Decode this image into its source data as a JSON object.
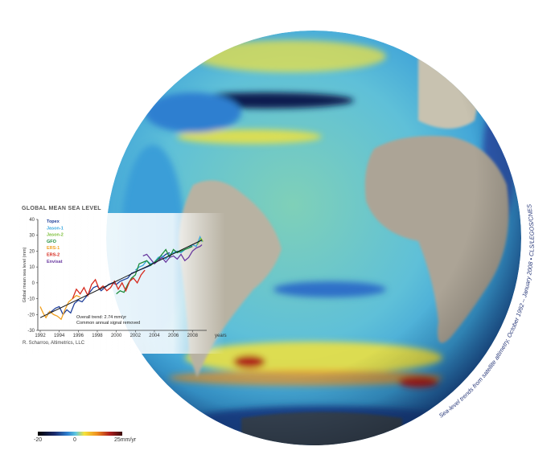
{
  "caption": "Sea-level trends from satellite altimetry, October 1992 – January 2008 • CLS/LEGOS/CNES",
  "colorbar": {
    "min_label": "-20",
    "mid_label": "0",
    "max_label": "25mm/yr",
    "colors": [
      "#000000",
      "#1a2a6c",
      "#2d7fd0",
      "#5fc8e0",
      "#9fd8a0",
      "#f5e33a",
      "#f09020",
      "#b01e1e",
      "#3a0a0a"
    ]
  },
  "credit": "R. Scharroo, Altimetrics, LLC",
  "chart_data": {
    "type": "line",
    "title": "GLOBAL MEAN SEA LEVEL",
    "ylabel": "Global mean sea level (mm)",
    "xlabel": "years",
    "xlim": [
      1992,
      2009.5
    ],
    "ylim": [
      -30,
      40
    ],
    "xticks": [
      "1992",
      "1994",
      "1996",
      "1998",
      "2000",
      "2002",
      "2004",
      "2006",
      "2008"
    ],
    "yticks": [
      "-30",
      "-20",
      "-10",
      "0",
      "10",
      "20",
      "30",
      "40"
    ],
    "legend_placement": "top-left",
    "annotations": [
      "Overall trend: 2.74 mm/yr",
      "Common annual signal removed"
    ],
    "trend": {
      "x": [
        1992,
        2009
      ],
      "y": [
        -22,
        27
      ]
    },
    "series": [
      {
        "name": "Topex",
        "color": "#1f3f9a",
        "x": [
          1992.8,
          1993.2,
          1993.6,
          1994,
          1994.4,
          1994.8,
          1995.2,
          1995.6,
          1996,
          1996.4,
          1996.8,
          1997.2,
          1997.6,
          1998,
          1998.4,
          1998.8,
          1999.2,
          1999.6,
          2000,
          2000.4,
          2000.8,
          2001.2,
          2001.6,
          2002,
          2002.4,
          2002.8,
          2003.2,
          2003.6,
          2004,
          2004.4,
          2004.8,
          2005.2,
          2005.6
        ],
        "y": [
          -19,
          -18,
          -16,
          -15,
          -20,
          -17,
          -19,
          -13,
          -11,
          -12,
          -9,
          -6,
          -3,
          -2,
          -5,
          -3,
          -1,
          0,
          -1,
          1,
          2,
          3,
          6,
          7,
          8,
          9,
          10,
          11,
          13,
          15,
          16,
          18,
          19
        ]
      },
      {
        "name": "Jason-1",
        "color": "#3aa8e0",
        "x": [
          2002,
          2002.4,
          2002.8,
          2003.2,
          2003.6,
          2004,
          2004.4,
          2004.8,
          2005.2,
          2005.6,
          2006,
          2006.4,
          2006.8,
          2007.2,
          2007.6,
          2008,
          2008.4,
          2008.8,
          2009
        ],
        "y": [
          8,
          10,
          11,
          14,
          12,
          13,
          16,
          17,
          15,
          18,
          19,
          20,
          19,
          21,
          22,
          24,
          23,
          29,
          26
        ]
      },
      {
        "name": "Jason-2",
        "color": "#7cbf3a",
        "x": [
          2008.5,
          2008.7,
          2008.9,
          2009.1
        ],
        "y": [
          24,
          26,
          28,
          26
        ]
      },
      {
        "name": "GFO",
        "color": "#1e8c3a",
        "x": [
          2000,
          2000.4,
          2000.8,
          2001.2,
          2001.6,
          2002,
          2002.4,
          2002.8,
          2003.2,
          2003.6,
          2004,
          2004.4,
          2004.8,
          2005.2,
          2005.6,
          2006,
          2006.4,
          2006.8,
          2007.2,
          2007.6,
          2008
        ],
        "y": [
          -7,
          -5,
          -6,
          -1,
          3,
          5,
          12,
          13,
          14,
          11,
          13,
          15,
          18,
          21,
          16,
          21,
          19,
          20,
          21,
          22,
          23
        ]
      },
      {
        "name": "ERS-1",
        "color": "#f0a020",
        "x": [
          1992,
          1992.3,
          1992.6,
          1993,
          1993.4,
          1993.8,
          1994.2,
          1994.6,
          1995,
          1995.4,
          1995.8,
          1996.2
        ],
        "y": [
          -15,
          -19,
          -22,
          -18,
          -20,
          -21,
          -23,
          -17,
          -12,
          -10,
          -8,
          -9
        ]
      },
      {
        "name": "ERS-2",
        "color": "#d62a1e",
        "x": [
          1995.4,
          1995.8,
          1996.2,
          1996.6,
          1997,
          1997.4,
          1997.8,
          1998.2,
          1998.6,
          1999,
          1999.4,
          1999.8,
          2000.2,
          2000.6,
          2001,
          2001.4,
          2001.8,
          2002.2,
          2002.6,
          2003
        ],
        "y": [
          -10,
          -4,
          -7,
          -3,
          -8,
          -1,
          2,
          -4,
          -2,
          -5,
          -3,
          1,
          -4,
          0,
          -5,
          1,
          3,
          0,
          5,
          8
        ]
      },
      {
        "name": "Envisat",
        "color": "#6a3aa0",
        "x": [
          2002.8,
          2003.2,
          2003.6,
          2004,
          2004.4,
          2004.8,
          2005.2,
          2005.6,
          2006,
          2006.4,
          2006.8,
          2007.2,
          2007.6,
          2008,
          2008.4,
          2008.8,
          2009
        ],
        "y": [
          17,
          18,
          15,
          12,
          14,
          16,
          13,
          16,
          17,
          15,
          18,
          14,
          16,
          20,
          22,
          23,
          24
        ]
      }
    ]
  }
}
